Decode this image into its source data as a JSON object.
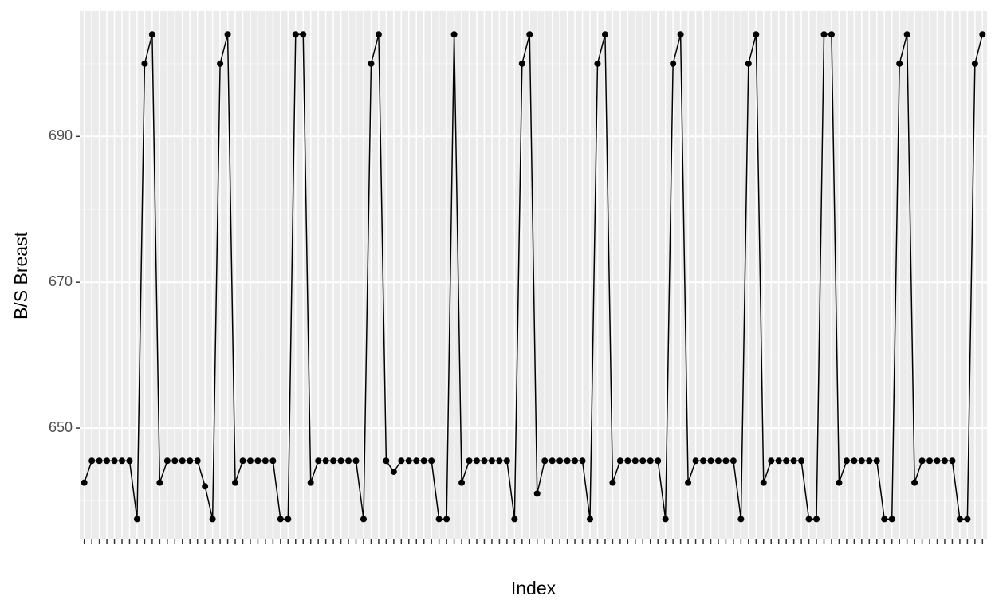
{
  "chart_data": {
    "type": "line",
    "x_label": "Index",
    "y_label": "B/S Breast",
    "categories": [
      null,
      null,
      null,
      null,
      null,
      null,
      null,
      null,
      null,
      null,
      null,
      null,
      null,
      null,
      null,
      null,
      null,
      null,
      null,
      null,
      null,
      null,
      null,
      null,
      null,
      null,
      null,
      null,
      null,
      null,
      null,
      null,
      null,
      null,
      null,
      null,
      null,
      null,
      null,
      null,
      null,
      null,
      null,
      null,
      null,
      null,
      null,
      null,
      null,
      null,
      null,
      null,
      null,
      null,
      null,
      null,
      null,
      null,
      null,
      null,
      null,
      null,
      null,
      null,
      null,
      null,
      null,
      null,
      null,
      null,
      null,
      null,
      null,
      null,
      null,
      null,
      null,
      null,
      null,
      null,
      null,
      null,
      null,
      null,
      null,
      null,
      null,
      null,
      null,
      null,
      null,
      null,
      null,
      null,
      null,
      null,
      null,
      null,
      null,
      null,
      null,
      null,
      null,
      null,
      null,
      null,
      null,
      null,
      null,
      null,
      null,
      null,
      null,
      null,
      null,
      null,
      null,
      null,
      null,
      null
    ],
    "series": [
      {
        "name": "B/S Breast",
        "color": "#000000",
        "values": [
          642.5,
          645.5,
          645.5,
          645.5,
          645.5,
          645.5,
          645.5,
          637.5,
          700,
          704,
          642.5,
          645.5,
          645.5,
          645.5,
          645.5,
          645.5,
          642,
          637.5,
          700,
          704,
          642.5,
          645.5,
          645.5,
          645.5,
          645.5,
          645.5,
          637.5,
          637.5,
          704,
          704,
          642.5,
          645.5,
          645.5,
          645.5,
          645.5,
          645.5,
          645.5,
          637.5,
          700,
          704,
          645.5,
          644,
          645.5,
          645.5,
          645.5,
          645.5,
          645.5,
          637.5,
          637.5,
          704,
          642.5,
          645.5,
          645.5,
          645.5,
          645.5,
          645.5,
          645.5,
          637.5,
          700,
          704,
          641,
          645.5,
          645.5,
          645.5,
          645.5,
          645.5,
          645.5,
          637.5,
          700,
          704,
          642.5,
          645.5,
          645.5,
          645.5,
          645.5,
          645.5,
          645.5,
          637.5,
          700,
          704,
          642.5,
          645.5,
          645.5,
          645.5,
          645.5,
          645.5,
          645.5,
          637.5,
          700,
          704,
          642.5,
          645.5,
          645.5,
          645.5,
          645.5,
          645.5,
          637.5,
          637.5,
          704,
          704,
          642.5,
          645.5,
          645.5,
          645.5,
          645.5,
          645.5,
          637.5,
          637.5,
          700,
          704,
          642.5,
          645.5,
          645.5,
          645.5,
          645.5,
          645.5,
          637.5,
          637.5,
          700,
          704
        ]
      }
    ],
    "ylim": [
      634.7,
      707.2
    ],
    "yticks": [
      650,
      670,
      690
    ],
    "yminorticks": [
      640,
      660,
      680,
      700
    ],
    "grid": true
  }
}
